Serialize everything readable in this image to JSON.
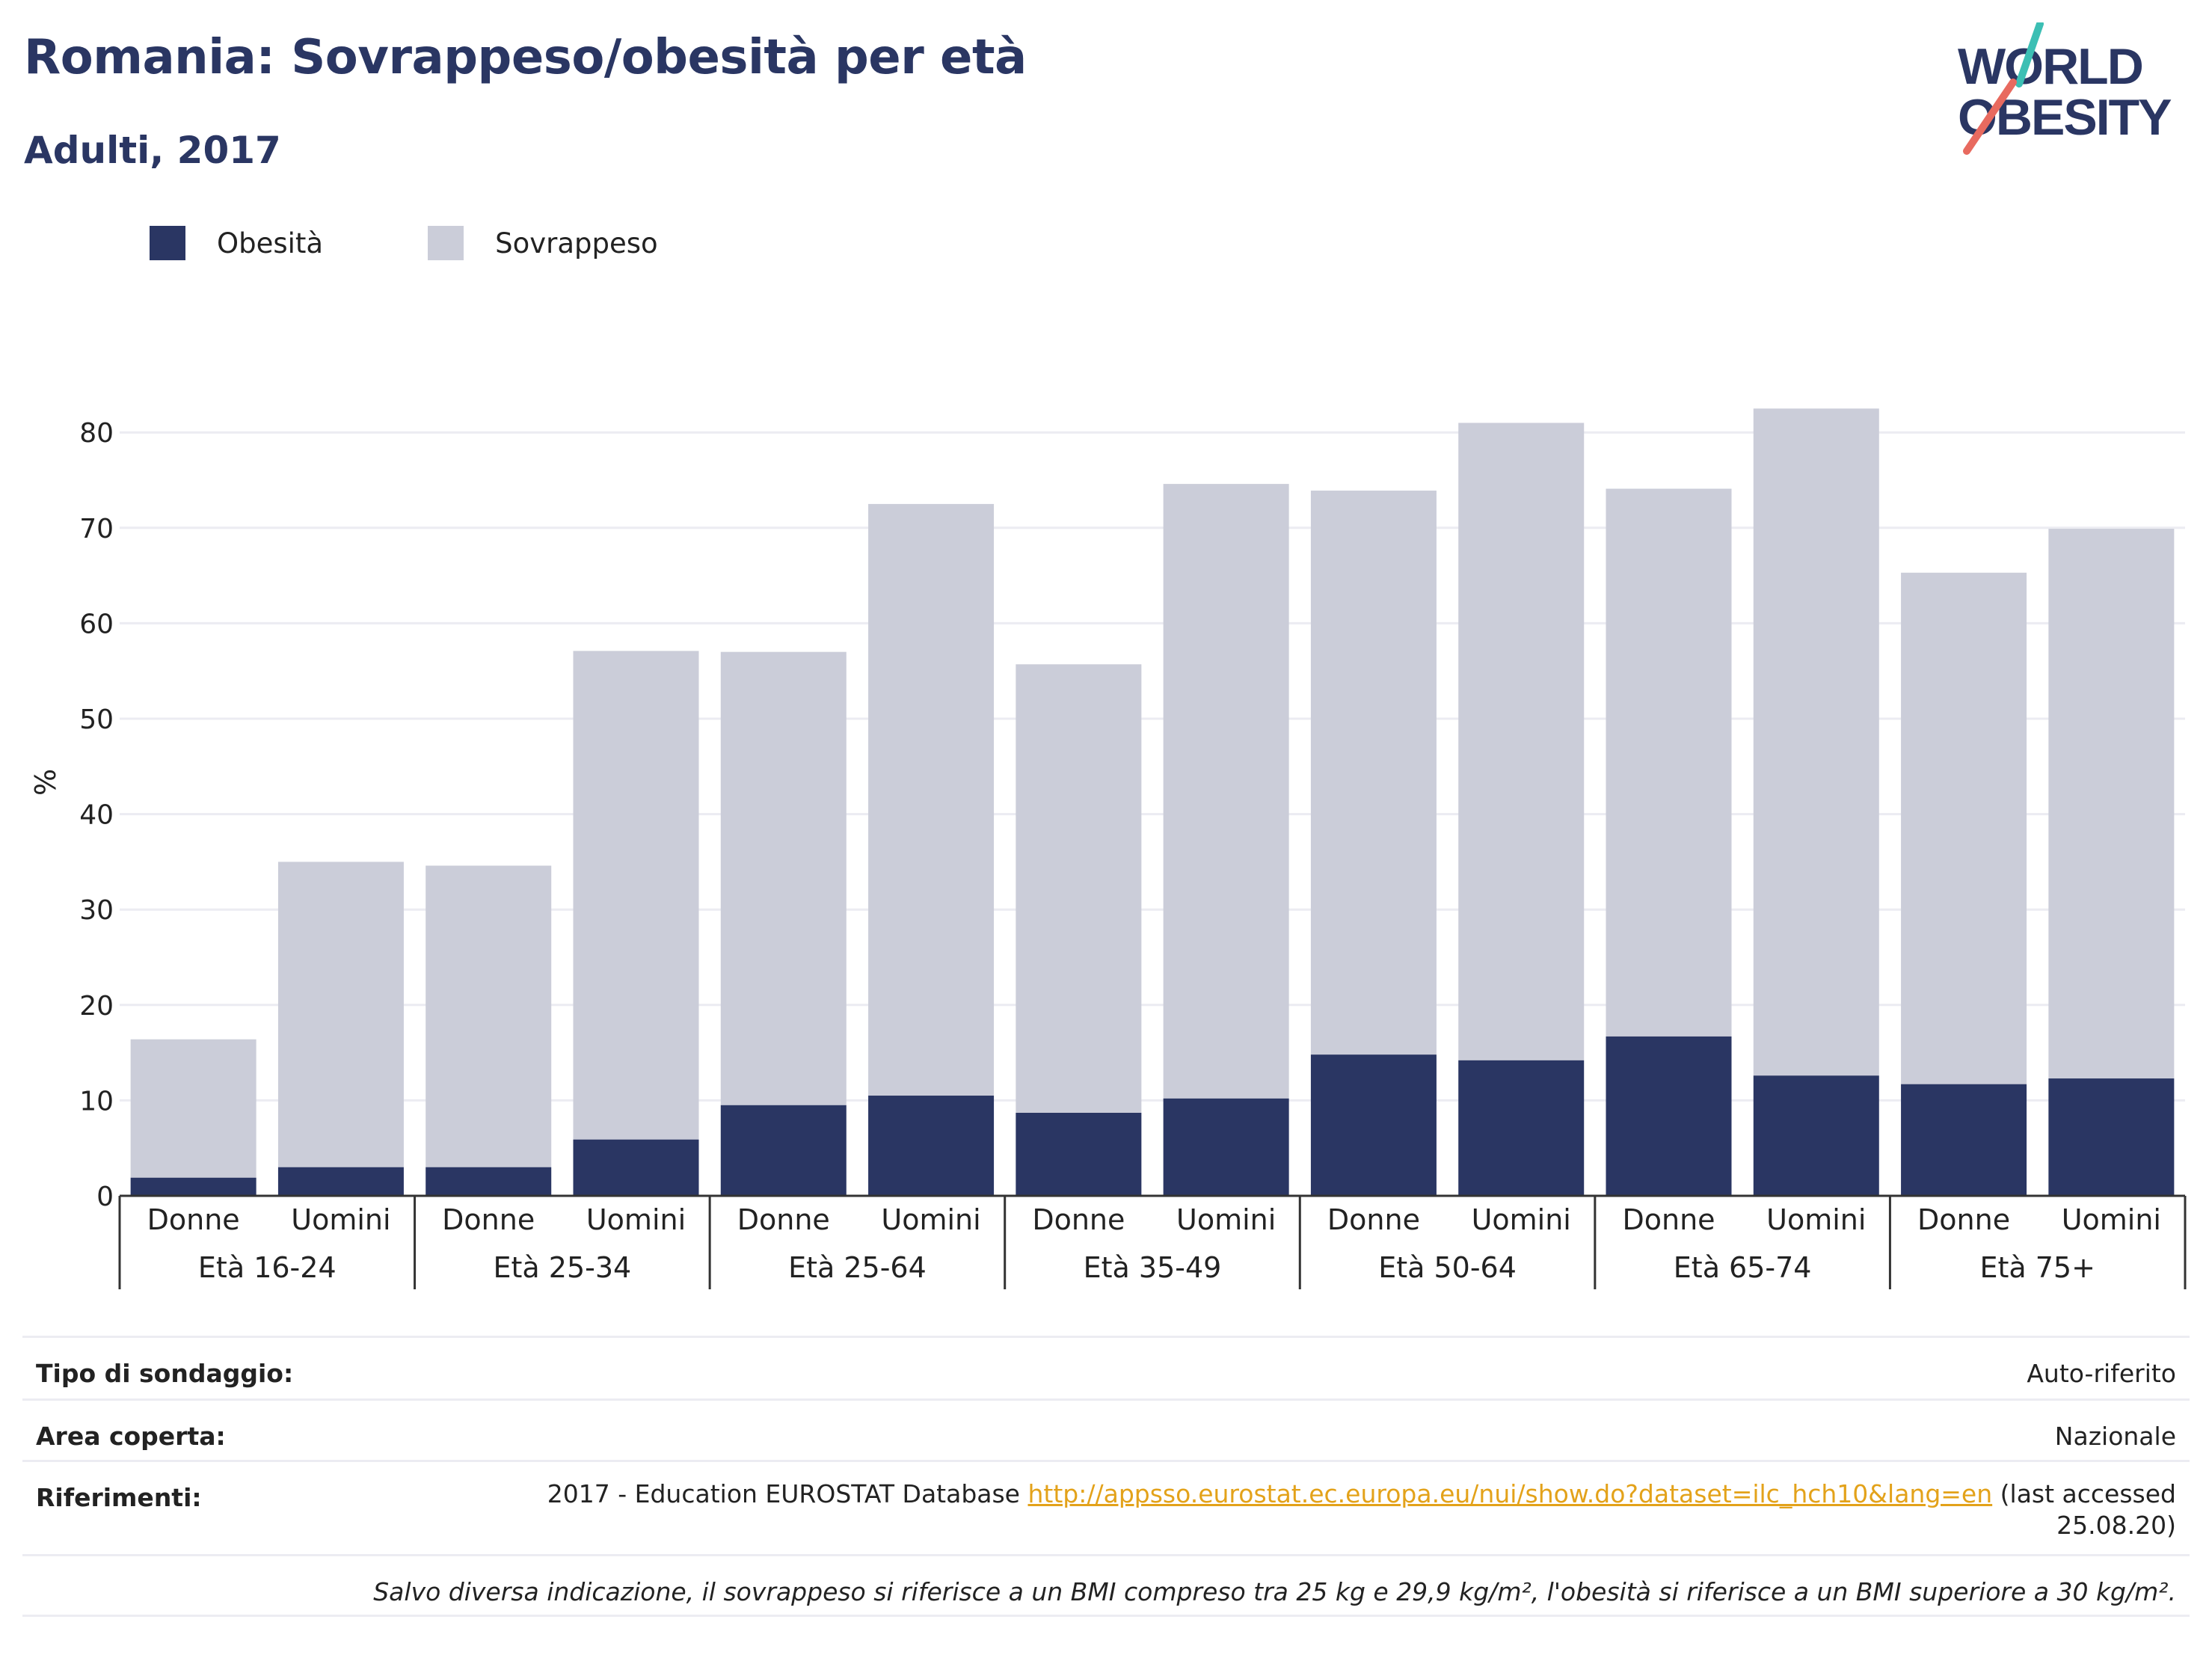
{
  "header": {
    "title": "Romania: Sovrappeso/obesità per età",
    "subtitle": "Adulti, 2017"
  },
  "logo": {
    "line1": "WORLD",
    "line2": "OBESITY",
    "icon": "world-obesity-logo"
  },
  "colors": {
    "obesity": "#2a3663",
    "overweight": "#cbcdd9",
    "accent_teal": "#3cbfb4",
    "accent_coral": "#e86a5f",
    "link": "#e3a21a"
  },
  "chart_data": {
    "type": "bar",
    "stacked": true,
    "ylabel": "%",
    "ylim": [
      0,
      85
    ],
    "yticks": [
      0,
      10,
      20,
      30,
      40,
      50,
      60,
      70,
      80
    ],
    "legend": {
      "placement": "top-left",
      "items": [
        "Obesità",
        "Sovrappeso"
      ]
    },
    "groups": [
      {
        "label": "Età 16-24",
        "categories": [
          "Donne",
          "Uomini"
        ]
      },
      {
        "label": "Età 25-34",
        "categories": [
          "Donne",
          "Uomini"
        ]
      },
      {
        "label": "Età 25-64",
        "categories": [
          "Donne",
          "Uomini"
        ]
      },
      {
        "label": "Età 35-49",
        "categories": [
          "Donne",
          "Uomini"
        ]
      },
      {
        "label": "Età 50-64",
        "categories": [
          "Donne",
          "Uomini"
        ]
      },
      {
        "label": "Età 65-74",
        "categories": [
          "Donne",
          "Uomini"
        ]
      },
      {
        "label": "Età 75+",
        "categories": [
          "Donne",
          "Uomini"
        ]
      }
    ],
    "series": [
      {
        "name": "Obesità",
        "values": [
          1.9,
          3.0,
          3.0,
          5.9,
          9.5,
          10.5,
          8.7,
          10.2,
          14.8,
          14.2,
          16.7,
          12.6,
          11.7,
          12.3
        ]
      },
      {
        "name": "Sovrappeso",
        "values": [
          14.5,
          32.0,
          31.6,
          51.2,
          47.5,
          62.0,
          47.0,
          64.4,
          59.1,
          66.8,
          57.4,
          69.9,
          53.6,
          57.6
        ]
      }
    ]
  },
  "info": {
    "survey_type_label": "Tipo di sondaggio:",
    "survey_type_value": "Auto-riferito",
    "area_label": "Area coperta:",
    "area_value": "Nazionale",
    "references_label": "Riferimenti:",
    "references_prefix": "2017 - Education EUROSTAT Database",
    "references_link": "http://appsso.eurostat.ec.europa.eu/nui/show.do?dataset=ilc_hch10&lang=en",
    "references_suffix_1": "(last accessed",
    "references_suffix_2": "25.08.20)",
    "note": "Salvo diversa indicazione, il sovrappeso si riferisce a un BMI compreso tra 25 kg e 29,9 kg/m², l'obesità si riferisce a un BMI superiore a 30 kg/m²."
  }
}
